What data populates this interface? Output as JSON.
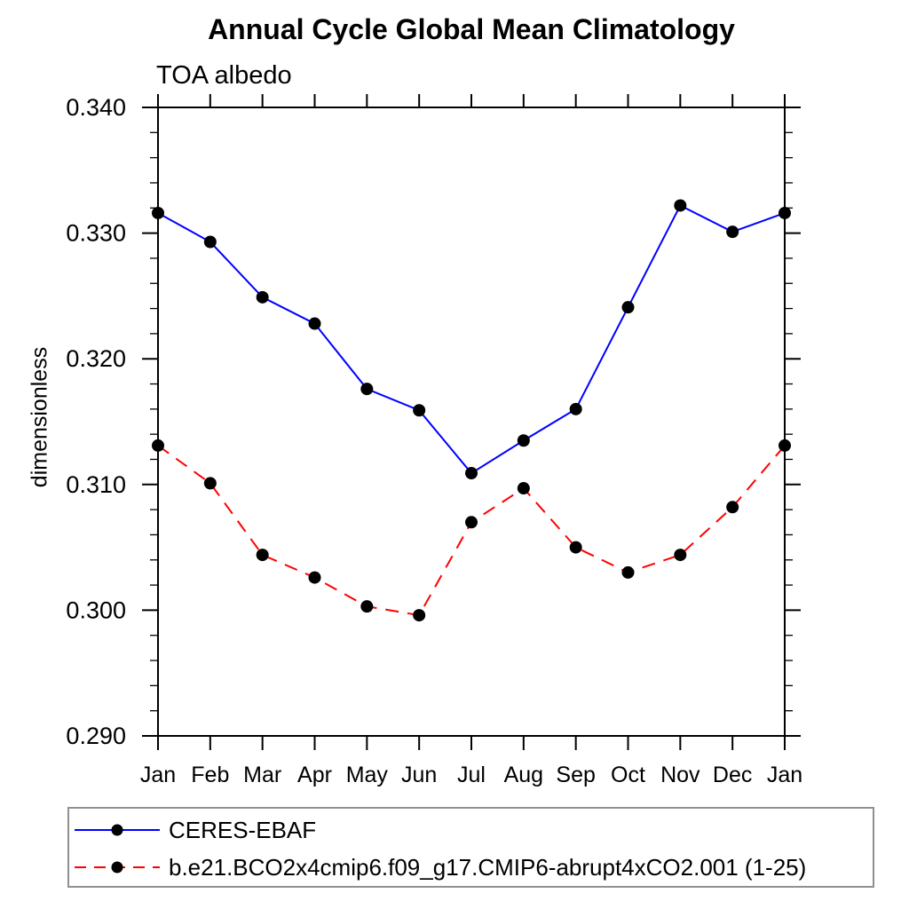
{
  "chart_data": {
    "type": "line",
    "title": "Annual Cycle Global Mean Climatology",
    "subtitle": "TOA albedo",
    "ylabel": "dimensionless",
    "xlabel": "",
    "x_labels": [
      "Jan",
      "Feb",
      "Mar",
      "Apr",
      "May",
      "Jun",
      "Jul",
      "Aug",
      "Sep",
      "Oct",
      "Nov",
      "Dec",
      "Jan"
    ],
    "ylim": [
      0.29,
      0.34
    ],
    "ytick_major_step": 0.01,
    "ytick_minor_step": 0.002,
    "ytick_label_decimals": 3,
    "ytick_labels": [
      "0.290",
      "0.300",
      "0.310",
      "0.320",
      "0.330",
      "0.340"
    ],
    "grid": false,
    "legend_position": "bottom-left-box",
    "series": [
      {
        "name": "CERES-EBAF",
        "color": "#0000ff",
        "line_style": "solid",
        "marker": "filled-circle",
        "marker_color": "#000000",
        "values": [
          0.3316,
          0.3293,
          0.3249,
          0.3228,
          0.3176,
          0.3159,
          0.3109,
          0.3135,
          0.316,
          0.3241,
          0.3322,
          0.3301,
          0.3316
        ]
      },
      {
        "name": "b.e21.BCO2x4cmip6.f09_g17.CMIP6-abrupt4xCO2.001 (1-25)",
        "color": "#ff0000",
        "line_style": "dashed",
        "marker": "filled-circle",
        "marker_color": "#000000",
        "values": [
          0.3131,
          0.3101,
          0.3044,
          0.3026,
          0.3003,
          0.2996,
          0.307,
          0.3097,
          0.305,
          0.303,
          0.3044,
          0.3082,
          0.3131
        ]
      }
    ]
  },
  "colors": {
    "background": "#ffffff",
    "axis": "#000000",
    "text": "#000000",
    "legend_border": "#909090",
    "series_blue": "#0000ff",
    "series_red": "#ff0000",
    "marker": "#000000"
  }
}
